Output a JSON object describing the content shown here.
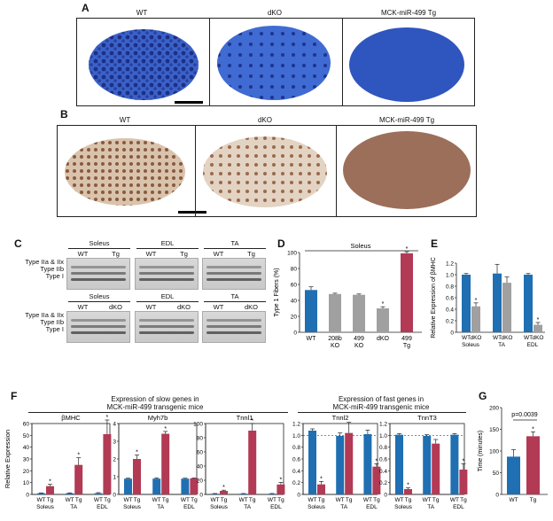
{
  "panelA": {
    "label": "A",
    "titles": [
      "WT",
      "dKO",
      "MCK-miR-499 Tg"
    ]
  },
  "panelB": {
    "label": "B",
    "titles": [
      "WT",
      "dKO",
      "MCK-miR-499 Tg"
    ]
  },
  "panelC": {
    "label": "C",
    "top": {
      "groups": [
        "Soleus",
        "EDL",
        "TA"
      ],
      "lanes": [
        "WT",
        "Tg",
        "WT",
        "Tg",
        "WT",
        "Tg"
      ]
    },
    "bottom": {
      "groups": [
        "Soleus",
        "EDL",
        "TA"
      ],
      "lanes": [
        "WT",
        "dKO",
        "WT",
        "dKO",
        "WT",
        "dKO"
      ]
    },
    "bandLabels": [
      "Type IIa & IIx",
      "Type IIb",
      "Type I"
    ]
  },
  "colors": {
    "wt": "#1f6fb2",
    "tg": "#b23a55",
    "ko": "#a0a0a0"
  },
  "chart_data": [
    {
      "panel": "D",
      "type": "bar",
      "title": "Soleus",
      "ylabel": "Type 1 Fibers (%)",
      "ylim": [
        0,
        100
      ],
      "yticks": [
        "0",
        "20",
        "40",
        "60",
        "80",
        "100"
      ],
      "categories": [
        "WT",
        "208b KO",
        "499 KO",
        "dKO",
        "499 Tg"
      ],
      "values": [
        53,
        48,
        47,
        30,
        99
      ],
      "errors": [
        4,
        1,
        1,
        2,
        2
      ],
      "colors": [
        "wt",
        "ko",
        "ko",
        "ko",
        "tg"
      ],
      "stars": [
        "",
        "",
        "",
        "*",
        "*"
      ]
    },
    {
      "panel": "E",
      "type": "bar",
      "ylabel": "Relative Expression of βMHC",
      "ylim": [
        0,
        1.2
      ],
      "yticks": [
        "0",
        "0.2",
        "0.4",
        "0.6",
        "0.8",
        "1.0",
        "1.2"
      ],
      "categories": [
        "WT",
        "dKO",
        "WT",
        "dKO",
        "WT",
        "dKO"
      ],
      "groups": [
        "Soleus",
        "TA",
        "EDL"
      ],
      "values": [
        1.0,
        0.45,
        1.02,
        0.86,
        1.0,
        0.13
      ],
      "errors": [
        0.02,
        0.06,
        0.16,
        0.1,
        0.02,
        0.04
      ],
      "colors": [
        "wt",
        "ko",
        "wt",
        "ko",
        "wt",
        "ko"
      ],
      "stars": [
        "",
        "*",
        "",
        "",
        "",
        "*"
      ]
    },
    {
      "panel": "F1",
      "type": "bar",
      "title": "βMHC",
      "ylim": [
        0,
        60
      ],
      "yticks": [
        "0",
        "10",
        "20",
        "30",
        "40",
        "50",
        "60"
      ],
      "categories": [
        "WT",
        "Tg",
        "WT",
        "Tg",
        "WT",
        "Tg"
      ],
      "groups": [
        "Soleus",
        "TA",
        "EDL"
      ],
      "values": [
        1,
        7,
        1,
        25,
        1,
        51
      ],
      "errors": [
        0.3,
        1.5,
        0.3,
        6,
        0.5,
        12
      ],
      "colors": [
        "wt",
        "tg",
        "wt",
        "tg",
        "wt",
        "tg"
      ],
      "stars": [
        "",
        "*",
        "",
        "*",
        "",
        "*"
      ]
    },
    {
      "panel": "F2",
      "type": "bar",
      "title": "Myh7b",
      "ylim": [
        0,
        4.5
      ],
      "yticks": [
        "0",
        "1",
        "2",
        "3",
        "4"
      ],
      "categories": [
        "WT",
        "Tg",
        "WT",
        "Tg",
        "WT",
        "Tg"
      ],
      "groups": [
        "Soleus",
        "TA",
        "EDL"
      ],
      "values": [
        1,
        2.25,
        1,
        3.85,
        1,
        1.02
      ],
      "errors": [
        0.03,
        0.25,
        0.05,
        0.15,
        0.03,
        0.03
      ],
      "colors": [
        "wt",
        "tg",
        "wt",
        "tg",
        "wt",
        "tg"
      ],
      "stars": [
        "",
        "*",
        "",
        "*",
        "",
        ""
      ]
    },
    {
      "panel": "F3",
      "type": "bar",
      "title": "Tnnl1",
      "ylim": [
        0,
        100
      ],
      "yticks": [
        "0",
        "20",
        "40",
        "60",
        "80",
        "100"
      ],
      "categories": [
        "WT",
        "Tg",
        "WT",
        "Tg",
        "WT",
        "Tg"
      ],
      "groups": [
        "Soleus",
        "TA",
        "EDL"
      ],
      "values": [
        1,
        5,
        1,
        90,
        1,
        14
      ],
      "errors": [
        0.3,
        1,
        0.3,
        10,
        0.3,
        3
      ],
      "colors": [
        "wt",
        "tg",
        "wt",
        "tg",
        "wt",
        "tg"
      ],
      "stars": [
        "",
        "*",
        "",
        "*",
        "",
        "*"
      ]
    },
    {
      "panel": "F4",
      "type": "bar",
      "title": "Tnnl2",
      "ylim": [
        0,
        1.2
      ],
      "yticks": [
        "0",
        "0.2",
        "0.4",
        "0.6",
        "0.8",
        "1.0",
        "1.2"
      ],
      "dashed": 1.0,
      "categories": [
        "WT",
        "Tg",
        "WT",
        "Tg",
        "WT",
        "Tg"
      ],
      "groups": [
        "Soleus",
        "TA",
        "EDL"
      ],
      "values": [
        1.08,
        0.17,
        0.99,
        1.04,
        1.02,
        0.47
      ],
      "errors": [
        0.03,
        0.05,
        0.05,
        0.18,
        0.07,
        0.05
      ],
      "colors": [
        "wt",
        "tg",
        "wt",
        "tg",
        "wt",
        "tg"
      ],
      "stars": [
        "",
        "*",
        "",
        "",
        "",
        "*"
      ]
    },
    {
      "panel": "F5",
      "type": "bar",
      "title": "TnnT3",
      "ylim": [
        0,
        1.2
      ],
      "yticks": [
        "0",
        "0.2",
        "0.4",
        "0.6",
        "0.8",
        "1.0",
        "1.2"
      ],
      "dashed": 1.0,
      "categories": [
        "WT",
        "Tg",
        "WT",
        "Tg",
        "WT",
        "Tg"
      ],
      "groups": [
        "Soleus",
        "TA",
        "EDL"
      ],
      "values": [
        1.01,
        0.09,
        0.99,
        0.86,
        1.01,
        0.42
      ],
      "errors": [
        0.02,
        0.02,
        0.02,
        0.07,
        0.02,
        0.1
      ],
      "colors": [
        "wt",
        "tg",
        "wt",
        "tg",
        "wt",
        "tg"
      ],
      "stars": [
        "",
        "*",
        "",
        "",
        "",
        "*"
      ]
    },
    {
      "panel": "G",
      "type": "bar",
      "ylabel": "Time (minutes)",
      "ylim": [
        0,
        200
      ],
      "yticks": [
        "0",
        "50",
        "100",
        "150",
        "200"
      ],
      "categories": [
        "WT",
        "Tg"
      ],
      "values": [
        87,
        134
      ],
      "errors": [
        16,
        10
      ],
      "colors": [
        "wt",
        "tg"
      ],
      "stars": [
        "",
        "*"
      ],
      "annotation": "p=0.0039"
    }
  ],
  "panelF": {
    "label": "F",
    "slowTitle": [
      "Expression of slow genes in",
      "MCK-miR-499 transgenic mice"
    ],
    "fastTitle": [
      "Expression of fast genes in",
      "MCK-miR-499 transgenic mice"
    ],
    "ylabel": "Relative Expression"
  },
  "labels": {
    "D": "D",
    "E": "E",
    "G": "G"
  }
}
